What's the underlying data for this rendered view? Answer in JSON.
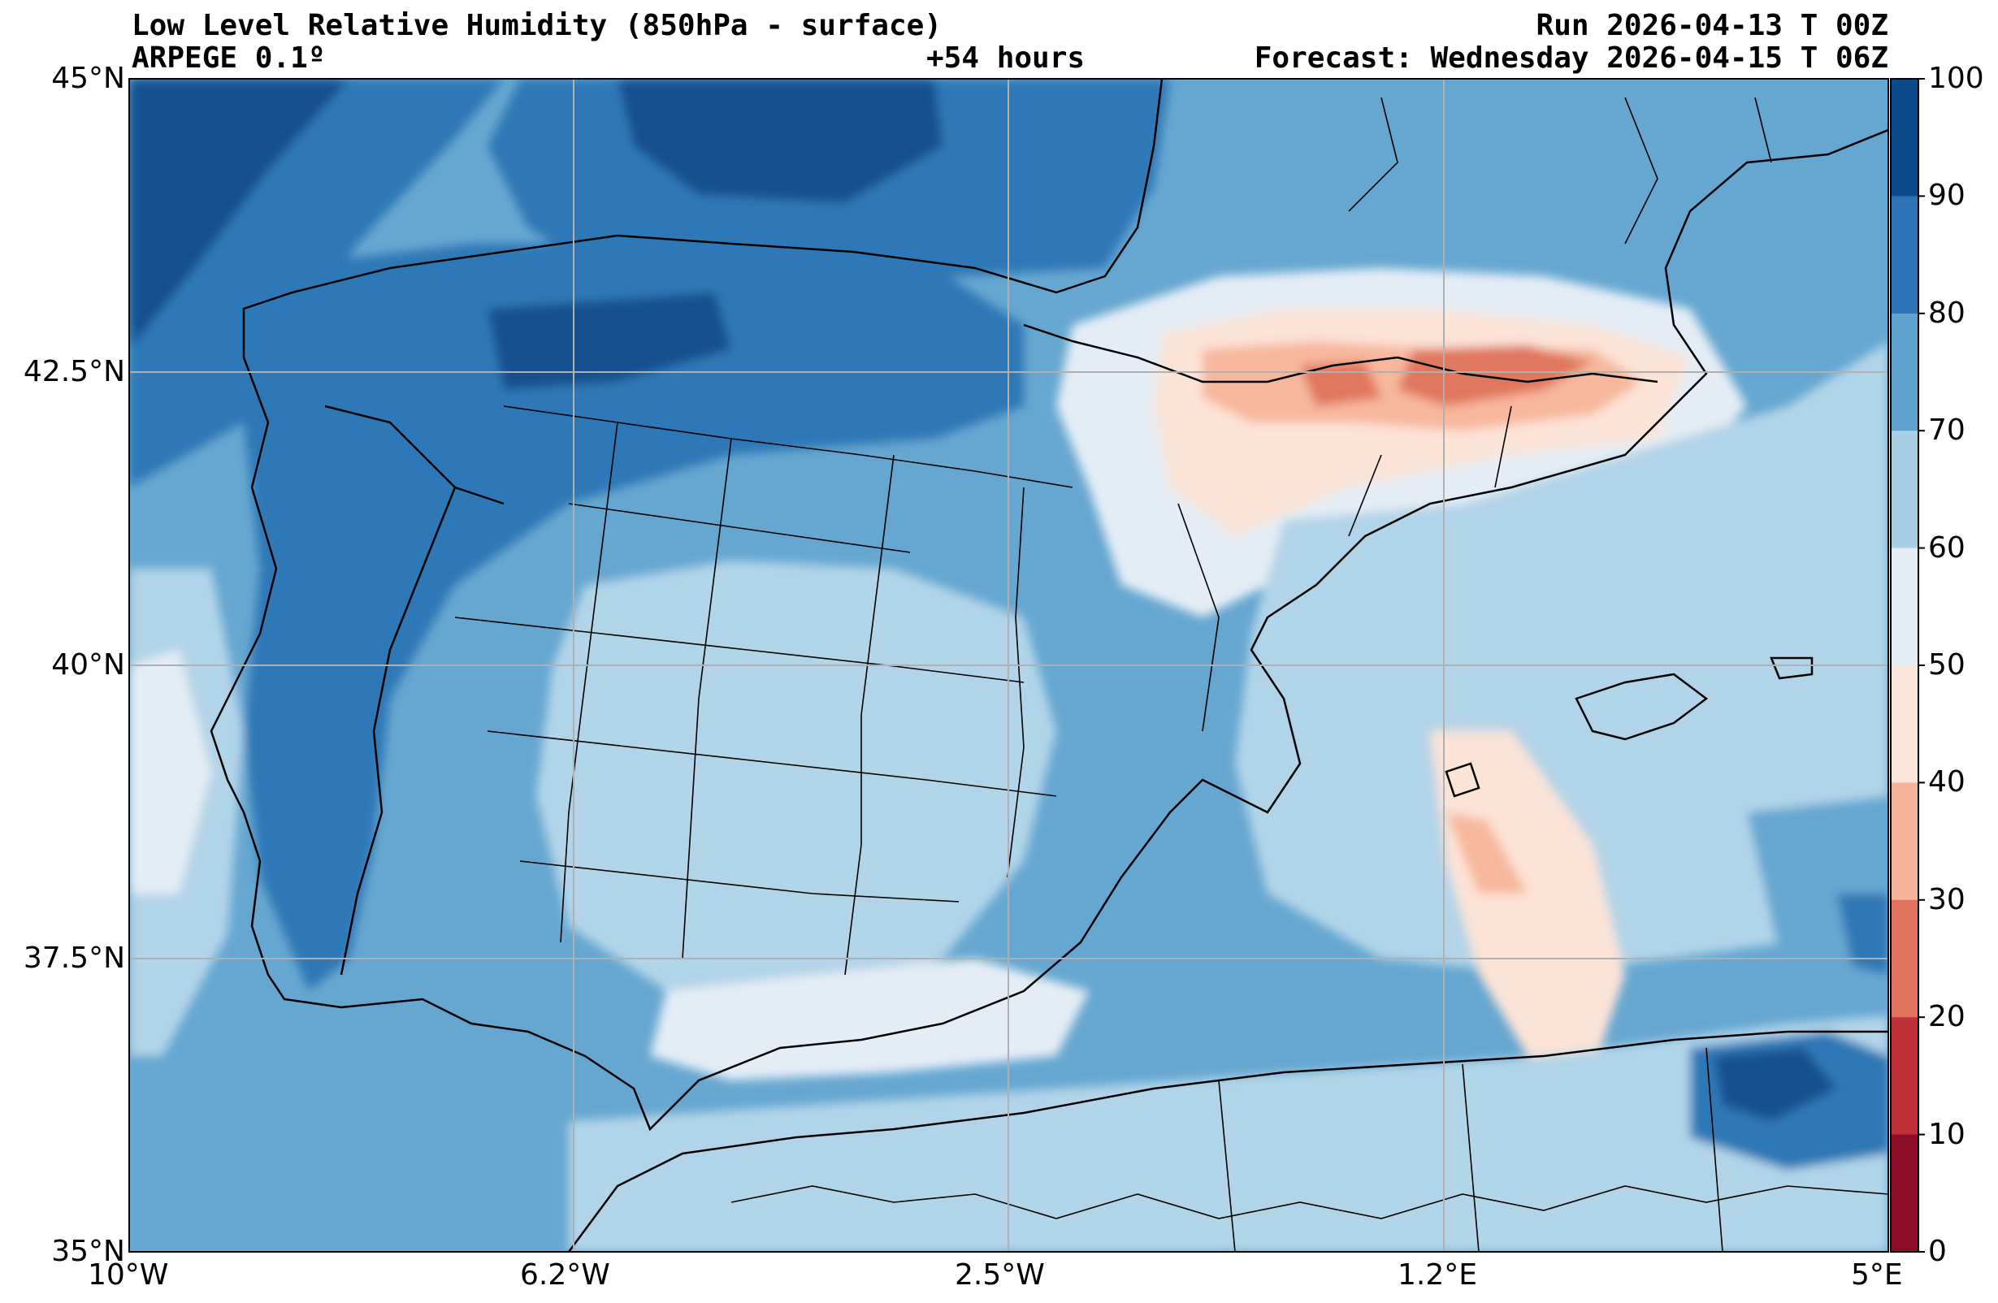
{
  "header": {
    "title": "Low Level Relative Humidity (850hPa - surface)",
    "model": "ARPEGE 0.1º",
    "lead_time": "+54 hours",
    "run": "Run 2026-04-13 T 00Z",
    "forecast": "Forecast: Wednesday 2026-04-15 T 06Z"
  },
  "map": {
    "lat_range": [
      35,
      45
    ],
    "lon_range": [
      -10,
      5
    ],
    "lat_ticks": [
      "45°N",
      "42.5°N",
      "40°N",
      "37.5°N",
      "35°N"
    ],
    "lon_ticks": [
      "10°W",
      "6.2°W",
      "2.5°W",
      "1.2°E",
      "5°E"
    ]
  },
  "colorbar": {
    "labels": [
      "100",
      "90",
      "80",
      "70",
      "60",
      "50",
      "40",
      "30",
      "20",
      "10",
      "0"
    ],
    "colors": [
      "#0d4a8a",
      "#2b73b4",
      "#5ea2cd",
      "#a9cfe5",
      "#e4ecf4",
      "#fbe4d8",
      "#f6b49a",
      "#df725d",
      "#c0313a",
      "#8b0d26"
    ]
  },
  "palette": {
    "rh_90_100": "#14508f",
    "rh_80_90": "#2f78b7",
    "rh_70_80": "#66a7d1",
    "rh_60_70": "#b2d4e8",
    "rh_50_60": "#e4edf5",
    "rh_40_50": "#fbe3d6",
    "rh_30_40": "#f7b79c",
    "rh_20_30": "#e0775f",
    "rh_10_20": "#c3333b",
    "rh_0_10": "#8b0d26"
  }
}
